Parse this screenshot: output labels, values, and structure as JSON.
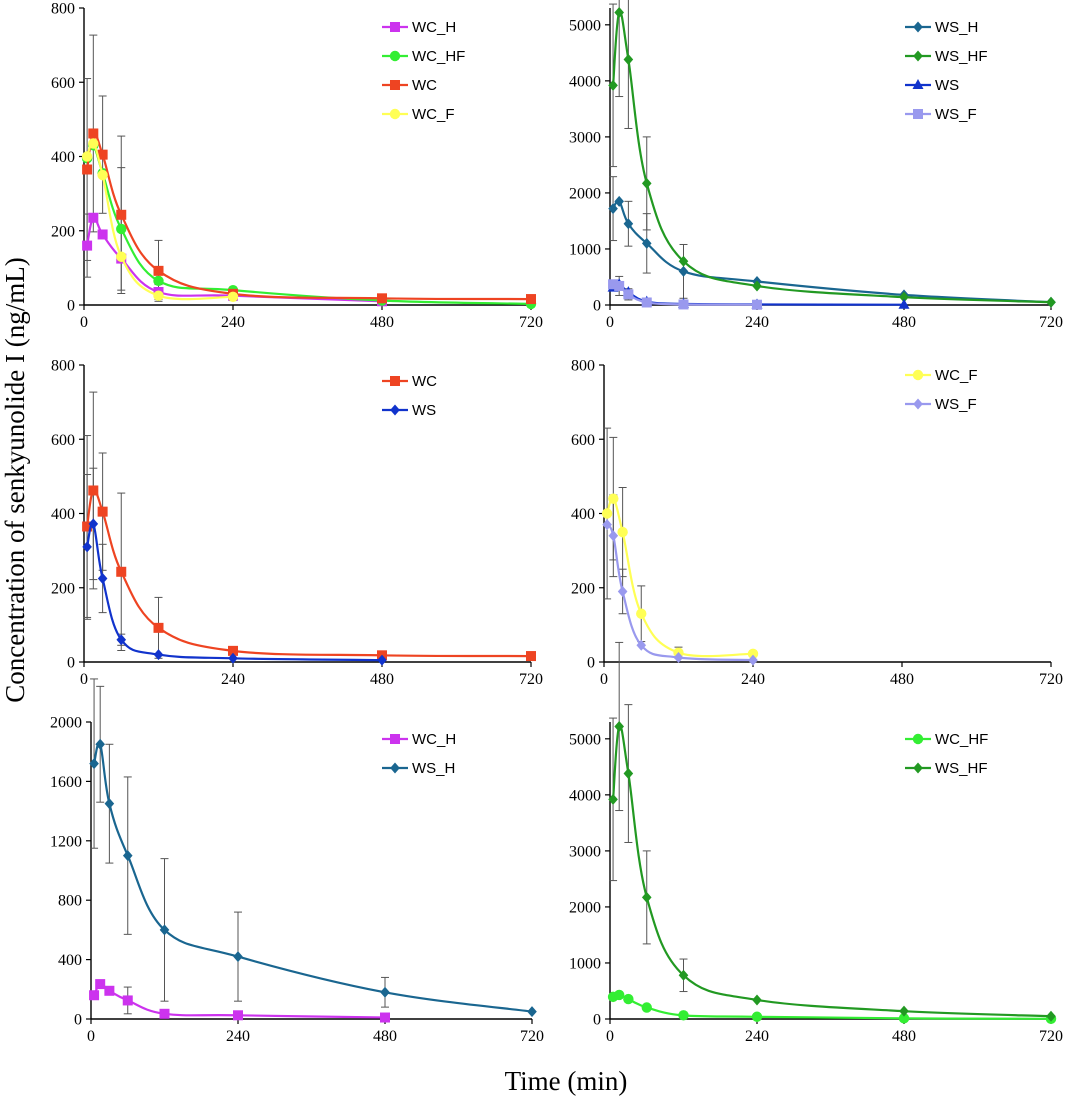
{
  "figure": {
    "ylabel": "Concentration of senkyunolide I (ng/mL)",
    "xlabel": "Time (min)"
  },
  "colors": {
    "WC_H": "#cc33ee",
    "WC_HF": "#33ee33",
    "WC": "#ee4422",
    "WC_F": "#ffff55",
    "WS_H": "#1a6690",
    "WS_HF": "#229922",
    "WS": "#1133cc",
    "WS_F": "#9999ee",
    "axis": "#000000",
    "errorbar": "#555555"
  },
  "chart_data": [
    {
      "type": "line",
      "panel": "top-left",
      "xlim": [
        0,
        720
      ],
      "ylim": [
        0,
        800
      ],
      "xticks": [
        0,
        240,
        480,
        720
      ],
      "yticks": [
        0,
        200,
        400,
        600,
        800
      ],
      "legend_position": "top-right",
      "series": [
        {
          "name": "WC_H",
          "marker": "square",
          "x": [
            5,
            15,
            30,
            60,
            120,
            240,
            480
          ],
          "y": [
            160,
            235,
            190,
            125,
            35,
            25,
            10
          ],
          "err": [
            85,
            0,
            0,
            0,
            20,
            0,
            0
          ]
        },
        {
          "name": "WC_HF",
          "marker": "circle",
          "x": [
            5,
            15,
            30,
            60,
            120,
            240,
            480,
            720
          ],
          "y": [
            395,
            430,
            355,
            205,
            65,
            40,
            12,
            3
          ],
          "err": [
            0,
            0,
            0,
            165,
            0,
            0,
            0,
            0
          ]
        },
        {
          "name": "WC",
          "marker": "square",
          "x": [
            5,
            15,
            30,
            60,
            120,
            240,
            480,
            720
          ],
          "y": [
            365,
            462,
            405,
            243,
            92,
            30,
            18,
            16
          ],
          "err": [
            245,
            265,
            158,
            212,
            82,
            18,
            0,
            0
          ]
        },
        {
          "name": "WC_F",
          "marker": "circle",
          "x": [
            5,
            15,
            30,
            60,
            120,
            240
          ],
          "y": [
            400,
            435,
            350,
            130,
            25,
            22
          ],
          "err": [
            0,
            0,
            0,
            0,
            0,
            0
          ]
        }
      ]
    },
    {
      "type": "line",
      "panel": "top-right",
      "xlim": [
        0,
        720
      ],
      "ylim": [
        0,
        5300
      ],
      "xticks": [
        0,
        240,
        480,
        720
      ],
      "yticks": [
        0,
        1000,
        2000,
        3000,
        4000,
        5000
      ],
      "legend_position": "top-right",
      "series": [
        {
          "name": "WS_H",
          "marker": "diamond",
          "x": [
            5,
            15,
            30,
            60,
            120,
            240,
            480,
            720
          ],
          "y": [
            1720,
            1850,
            1450,
            1100,
            600,
            420,
            180,
            50
          ],
          "err": [
            570,
            0,
            400,
            530,
            480,
            0,
            0,
            0
          ]
        },
        {
          "name": "WS_HF",
          "marker": "diamond",
          "x": [
            5,
            15,
            30,
            60,
            120,
            240,
            480,
            720
          ],
          "y": [
            3920,
            5220,
            4380,
            2170,
            780,
            340,
            140,
            50
          ],
          "err": [
            1450,
            1500,
            1230,
            830,
            0,
            0,
            0,
            0
          ]
        },
        {
          "name": "WS",
          "marker": "triangle",
          "x": [
            5,
            15,
            30,
            60,
            120,
            240,
            480
          ],
          "y": [
            310,
            370,
            230,
            60,
            20,
            10,
            5
          ],
          "err": [
            0,
            0,
            0,
            0,
            0,
            0,
            0
          ]
        },
        {
          "name": "WS_F",
          "marker": "square",
          "x": [
            5,
            15,
            30,
            60,
            120,
            240
          ],
          "y": [
            370,
            340,
            190,
            45,
            10,
            5
          ],
          "err": [
            0,
            170,
            100,
            0,
            0,
            0
          ]
        }
      ]
    },
    {
      "type": "line",
      "panel": "middle-left",
      "xlim": [
        0,
        720
      ],
      "ylim": [
        0,
        800
      ],
      "xticks": [
        0,
        240,
        480,
        720
      ],
      "yticks": [
        0,
        200,
        400,
        600,
        800
      ],
      "legend_position": "top-right",
      "series": [
        {
          "name": "WC",
          "marker": "square",
          "x": [
            5,
            15,
            30,
            60,
            120,
            240,
            480,
            720
          ],
          "y": [
            365,
            462,
            405,
            243,
            92,
            30,
            18,
            16
          ],
          "err": [
            245,
            265,
            158,
            212,
            82,
            0,
            0,
            0
          ]
        },
        {
          "name": "WS",
          "marker": "diamond",
          "x": [
            5,
            15,
            30,
            60,
            120,
            240,
            480
          ],
          "y": [
            310,
            372,
            225,
            60,
            20,
            10,
            5
          ],
          "err": [
            195,
            150,
            92,
            15,
            0,
            0,
            0
          ]
        }
      ]
    },
    {
      "type": "line",
      "panel": "middle-right",
      "xlim": [
        0,
        720
      ],
      "ylim": [
        0,
        800
      ],
      "xticks": [
        0,
        240,
        480,
        720
      ],
      "yticks": [
        0,
        200,
        400,
        600,
        800
      ],
      "legend_position": "top-right",
      "series": [
        {
          "name": "WC_F",
          "marker": "circle",
          "x": [
            5,
            15,
            30,
            60,
            120,
            240
          ],
          "y": [
            400,
            440,
            350,
            130,
            25,
            22
          ],
          "err": [
            230,
            165,
            120,
            75,
            15,
            0
          ]
        },
        {
          "name": "WS_F",
          "marker": "diamond",
          "x": [
            5,
            15,
            30,
            60,
            120,
            240
          ],
          "y": [
            370,
            340,
            190,
            45,
            12,
            5
          ],
          "err": [
            0,
            110,
            60,
            0,
            0,
            20
          ]
        }
      ]
    },
    {
      "type": "line",
      "panel": "bottom-left",
      "xlim": [
        0,
        720
      ],
      "ylim": [
        0,
        2000
      ],
      "xticks": [
        0,
        240,
        480,
        720
      ],
      "yticks": [
        0,
        400,
        800,
        1200,
        1600,
        2000
      ],
      "legend_position": "top-right",
      "series": [
        {
          "name": "WC_H",
          "marker": "square",
          "x": [
            5,
            15,
            30,
            60,
            120,
            240,
            480
          ],
          "y": [
            160,
            235,
            190,
            125,
            35,
            25,
            10
          ],
          "err": [
            0,
            0,
            0,
            90,
            0,
            0,
            0
          ]
        },
        {
          "name": "WS_H",
          "marker": "diamond",
          "x": [
            5,
            15,
            30,
            60,
            120,
            240,
            480,
            720
          ],
          "y": [
            1720,
            1850,
            1450,
            1100,
            600,
            420,
            180,
            50
          ],
          "err": [
            570,
            390,
            400,
            530,
            480,
            300,
            100,
            0
          ]
        }
      ]
    },
    {
      "type": "line",
      "panel": "bottom-right",
      "xlim": [
        0,
        720
      ],
      "ylim": [
        0,
        5300
      ],
      "xticks": [
        0,
        240,
        480,
        720
      ],
      "yticks": [
        0,
        1000,
        2000,
        3000,
        4000,
        5000
      ],
      "legend_position": "top-right",
      "series": [
        {
          "name": "WC_HF",
          "marker": "circle",
          "x": [
            5,
            15,
            30,
            60,
            120,
            240,
            480,
            720
          ],
          "y": [
            395,
            430,
            355,
            205,
            65,
            40,
            12,
            3
          ],
          "err": [
            0,
            0,
            0,
            0,
            0,
            0,
            0,
            0
          ]
        },
        {
          "name": "WS_HF",
          "marker": "diamond",
          "x": [
            5,
            15,
            30,
            60,
            120,
            240,
            480,
            720
          ],
          "y": [
            3920,
            5220,
            4380,
            2170,
            780,
            340,
            140,
            50
          ],
          "err": [
            1450,
            1500,
            1230,
            830,
            290,
            0,
            0,
            0
          ]
        }
      ]
    }
  ]
}
